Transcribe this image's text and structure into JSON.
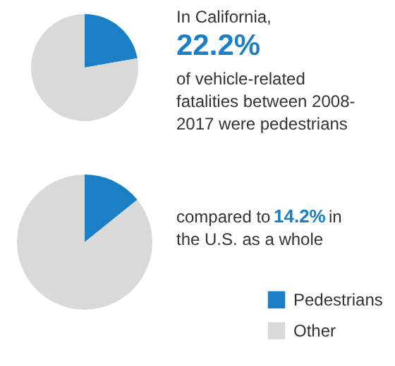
{
  "chart_data": [
    {
      "type": "pie",
      "categories": [
        "Pedestrians",
        "Other"
      ],
      "values": [
        22.2,
        77.8
      ],
      "colors": [
        "#1a7fc4",
        "#d9d9d9"
      ],
      "legend": "bottom right",
      "annotations": [
        "In California,",
        "22.2%",
        "of vehicle-related",
        "fatalities between 2008-",
        "2017 were pedestrians"
      ]
    },
    {
      "type": "pie",
      "categories": [
        null,
        null
      ],
      "values": [
        14.2,
        85.8
      ],
      "colors": [
        "#1a7fc4",
        "#d9d9d9"
      ],
      "annotations": [
        "compared to",
        "14.2%",
        "in",
        "the U.S. as a whole"
      ]
    }
  ]
}
